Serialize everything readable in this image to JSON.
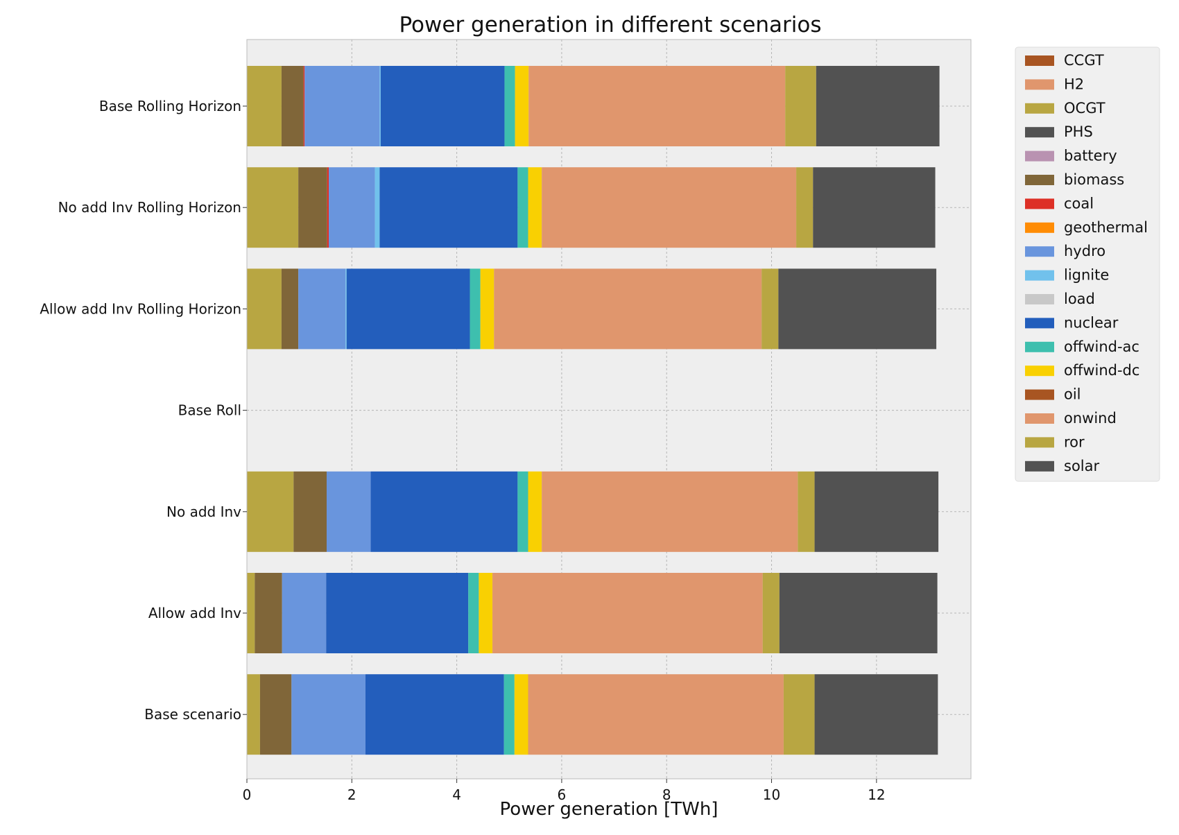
{
  "chart_data": {
    "type": "bar",
    "orientation": "horizontal",
    "stacked": true,
    "title": "Power generation in different scenarios",
    "xlabel": "Power generation [TWh]",
    "ylabel": "",
    "xlim": [
      0,
      13.8
    ],
    "xticks": [
      0,
      2,
      4,
      6,
      8,
      10,
      12
    ],
    "grid": true,
    "legend_position": "outside-top-right",
    "categories": [
      "Base Rolling Horizon",
      "No add Inv Rolling Horizon",
      "Allow add Inv Rolling Horizon",
      "Base Roll",
      "No add Inv",
      "Allow add Inv",
      "Base scenario"
    ],
    "series": [
      {
        "name": "CCGT",
        "color": "#a85522",
        "values": [
          0.0,
          0.0,
          0.0,
          0,
          0.0,
          0.0,
          0.0
        ]
      },
      {
        "name": "H2",
        "color": "#e0966d",
        "values": [
          0.0,
          0.0,
          0.0,
          0,
          0.0,
          0.0,
          0.0
        ]
      },
      {
        "name": "OCGT",
        "color": "#b8a642",
        "values": [
          0.66,
          0.98,
          0.66,
          0,
          0.89,
          0.15,
          0.25
        ]
      },
      {
        "name": "PHS",
        "color": "#525252",
        "values": [
          0.0,
          0.0,
          0.0,
          0,
          0.0,
          0.0,
          0.0
        ]
      },
      {
        "name": "battery",
        "color": "#b992b1",
        "values": [
          0.0,
          0.0,
          0.0,
          0,
          0.0,
          0.0,
          0.0
        ]
      },
      {
        "name": "biomass",
        "color": "#806639",
        "values": [
          0.42,
          0.55,
          0.32,
          0,
          0.63,
          0.52,
          0.6
        ]
      },
      {
        "name": "coal",
        "color": "#dd3026",
        "values": [
          0.02,
          0.03,
          0.0,
          0,
          0.0,
          0.0,
          0.0
        ]
      },
      {
        "name": "geothermal",
        "color": "#ff8c05",
        "values": [
          0.0,
          0.0,
          0.0,
          0,
          0.0,
          0.0,
          0.0
        ]
      },
      {
        "name": "hydro",
        "color": "#6995dd",
        "values": [
          1.43,
          0.88,
          0.9,
          0,
          0.84,
          0.84,
          1.41
        ]
      },
      {
        "name": "lignite",
        "color": "#71c1ec",
        "values": [
          0.02,
          0.09,
          0.02,
          0,
          0.0,
          0.0,
          0.0
        ]
      },
      {
        "name": "load",
        "color": "#c8c8c8",
        "values": [
          0.0,
          0.0,
          0.0,
          0,
          0.0,
          0.0,
          0.0
        ]
      },
      {
        "name": "nuclear",
        "color": "#235ebc",
        "values": [
          2.36,
          2.63,
          2.35,
          0,
          2.8,
          2.71,
          2.64
        ]
      },
      {
        "name": "offwind-ac",
        "color": "#3ebfae",
        "values": [
          0.2,
          0.2,
          0.2,
          0,
          0.2,
          0.2,
          0.2
        ]
      },
      {
        "name": "offwind-dc",
        "color": "#f9d002",
        "values": [
          0.26,
          0.26,
          0.26,
          0,
          0.26,
          0.26,
          0.26
        ]
      },
      {
        "name": "oil",
        "color": "#a85522",
        "values": [
          0.0,
          0.0,
          0.0,
          0,
          0.0,
          0.0,
          0.0
        ]
      },
      {
        "name": "onwind",
        "color": "#e0966d",
        "values": [
          4.89,
          4.85,
          5.1,
          0,
          4.88,
          5.15,
          4.87
        ]
      },
      {
        "name": "ror",
        "color": "#b8a642",
        "values": [
          0.59,
          0.32,
          0.32,
          0,
          0.32,
          0.32,
          0.59
        ]
      },
      {
        "name": "solar",
        "color": "#525252",
        "values": [
          2.35,
          2.33,
          3.01,
          0,
          2.36,
          3.01,
          2.35
        ]
      }
    ]
  }
}
